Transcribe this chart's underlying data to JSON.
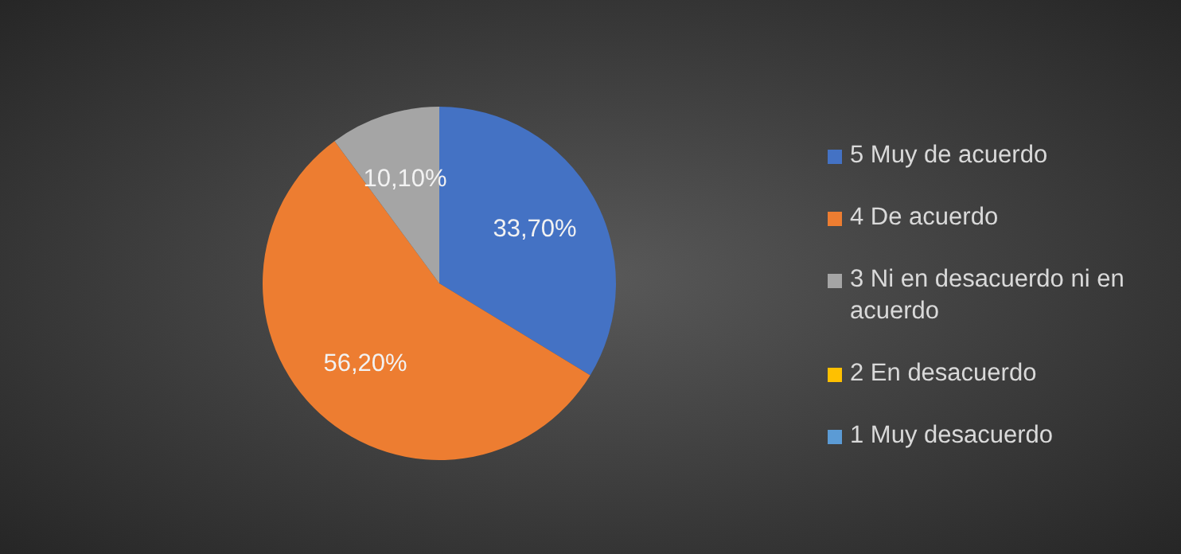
{
  "chart_data": {
    "type": "pie",
    "categories": [
      "5 Muy de acuerdo",
      "4 De acuerdo",
      "3 Ni en desacuerdo ni en acuerdo",
      "2 En desacuerdo",
      "1 Muy desacuerdo"
    ],
    "values": [
      33.7,
      56.2,
      10.1,
      0,
      0
    ],
    "colors": [
      "#4472c4",
      "#ed7d31",
      "#a5a5a5",
      "#ffc000",
      "#5b9bd5"
    ],
    "value_labels": [
      "33,70%",
      "56,20%",
      "10,10%",
      null,
      null
    ],
    "legend": "right"
  }
}
